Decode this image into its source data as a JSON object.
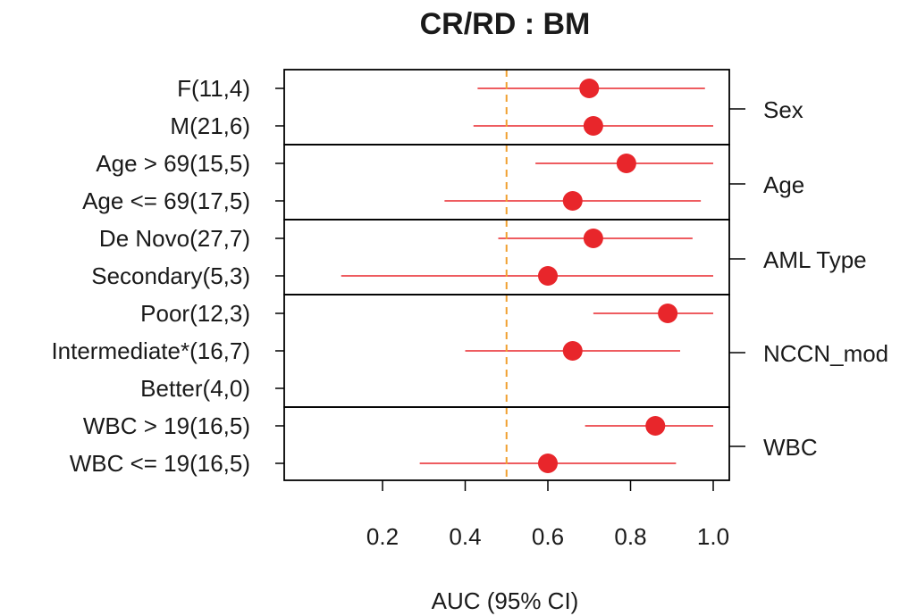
{
  "chart_data": {
    "type": "forest",
    "title": "CR/RD : BM",
    "xlabel": "AUC (95% CI)",
    "xlim": [
      0,
      1.04
    ],
    "xticks": [
      0.2,
      0.4,
      0.6,
      0.8,
      1.0
    ],
    "xtick_labels": [
      "0.2",
      "0.4",
      "0.6",
      "0.8",
      "1.0"
    ],
    "reference_line": 0.5,
    "colors": {
      "point": "#e8262b",
      "ci": "#e8262b",
      "reference": "#f0a030",
      "frame": "#000000"
    },
    "groups": [
      {
        "name": "Sex",
        "rows": [
          {
            "label": "F(11,4)",
            "auc": 0.7,
            "lo": 0.43,
            "hi": 0.98
          },
          {
            "label": "M(21,6)",
            "auc": 0.71,
            "lo": 0.42,
            "hi": 1.0
          }
        ]
      },
      {
        "name": "Age",
        "rows": [
          {
            "label": "Age  >  69(15,5)",
            "auc": 0.79,
            "lo": 0.57,
            "hi": 1.0
          },
          {
            "label": "Age  <=  69(17,5)",
            "auc": 0.66,
            "lo": 0.35,
            "hi": 0.97
          }
        ]
      },
      {
        "name": "AML Type",
        "rows": [
          {
            "label": "De Novo(27,7)",
            "auc": 0.71,
            "lo": 0.48,
            "hi": 0.95
          },
          {
            "label": "Secondary(5,3)",
            "auc": 0.6,
            "lo": 0.1,
            "hi": 1.0
          }
        ]
      },
      {
        "name": "NCCN_mod",
        "rows": [
          {
            "label": "Poor(12,3)",
            "auc": 0.89,
            "lo": 0.71,
            "hi": 1.0
          },
          {
            "label": "Intermediate*(16,7)",
            "auc": 0.66,
            "lo": 0.4,
            "hi": 0.92
          },
          {
            "label": "Better(4,0)",
            "auc": null,
            "lo": null,
            "hi": null
          }
        ]
      },
      {
        "name": "WBC",
        "rows": [
          {
            "label": "WBC  >  19(16,5)",
            "auc": 0.86,
            "lo": 0.69,
            "hi": 1.0
          },
          {
            "label": "WBC  <=  19(16,5)",
            "auc": 0.6,
            "lo": 0.29,
            "hi": 0.91
          }
        ]
      }
    ]
  }
}
